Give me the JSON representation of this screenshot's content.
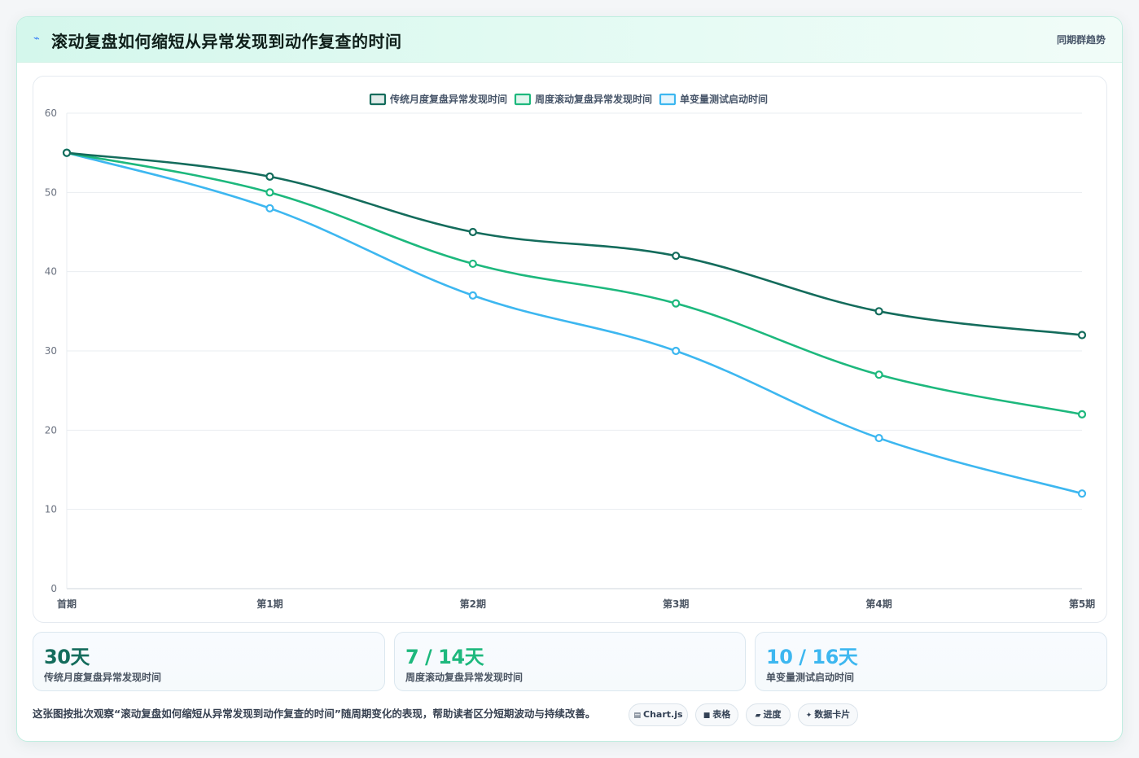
{
  "header": {
    "icon": "lightning-icon",
    "title": "滚动复盘如何缩短从异常发现到动作复查的时间",
    "right_label": "同期群趋势"
  },
  "chart_data": {
    "type": "line",
    "categories": [
      "首期",
      "第1期",
      "第2期",
      "第3期",
      "第4期",
      "第5期"
    ],
    "ylim": [
      0,
      60
    ],
    "yticks": [
      0,
      10,
      20,
      30,
      40,
      50,
      60
    ],
    "grid": true,
    "legend_position": "top-center",
    "series": [
      {
        "name": "传统月度复盘异常发现时间",
        "color": "#146c5c",
        "values": [
          55,
          52,
          45,
          42,
          35,
          32
        ]
      },
      {
        "name": "周度滚动复盘异常发现时间",
        "color": "#1db87d",
        "values": [
          55,
          50,
          41,
          36,
          27,
          22
        ]
      },
      {
        "name": "单变量测试启动时间",
        "color": "#3db7f0",
        "values": [
          55,
          48,
          37,
          30,
          19,
          12
        ]
      }
    ]
  },
  "stats": [
    {
      "value": "30天",
      "label": "传统月度复盘异常发现时间",
      "color": "#146c5c"
    },
    {
      "value": "7 / 14天",
      "label": "周度滚动复盘异常发现时间",
      "color": "#1db87d"
    },
    {
      "value": "10 / 16天",
      "label": "单变量测试启动时间",
      "color": "#3db7f0"
    }
  ],
  "footer": {
    "note": "这张图按批次观察“滚动复盘如何缩短从异常发现到动作复查的时间”随周期变化的表现，帮助读者区分短期波动与持续改善。",
    "chips": [
      {
        "icon": "▤",
        "icon_name": "chart-icon",
        "label": "Chart.js"
      },
      {
        "icon": "■",
        "icon_name": "table-icon",
        "label": "表格"
      },
      {
        "icon": "▰",
        "icon_name": "progress-icon",
        "label": "进度"
      },
      {
        "icon": "✦",
        "icon_name": "card-icon",
        "label": "数据卡片"
      }
    ]
  }
}
